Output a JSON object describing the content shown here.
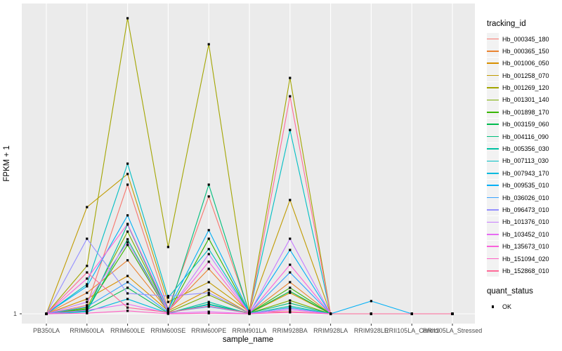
{
  "figure": {
    "background": "#FFFFFF",
    "panel_bg": "#EBEBEB",
    "grid_color": "#FFFFFF",
    "tick_color": "#333333",
    "axis_text_color": "#4D4D4D",
    "point_color": "#000000"
  },
  "chart_data": {
    "type": "line",
    "title": "",
    "xlabel": "sample_name",
    "ylabel": "FPKM + 1",
    "y_axis_ticks": [
      "1"
    ],
    "grid": true,
    "legend_position": "right",
    "point_marker": "black-square (quant_status OK)",
    "note": "y axis shows only the break label '1' at the baseline; series values are relative heights where 100 = tallest peak (Hb_001269_120 at RRIM600LE)",
    "ylim": [
      0,
      100
    ],
    "x": [
      "PB350LA",
      "RRIM600LA",
      "RRIM600LE",
      "RRIM600SE",
      "RRIM600PE",
      "RRIM901LA",
      "RRIM928BA",
      "RRIM928LA",
      "RRIM928LE",
      "RRII105LA_Control",
      "RRII105LA_Stressed"
    ],
    "series": [
      {
        "name": "Hb_000345_180",
        "color": "#F8766D",
        "values": [
          0,
          2.9,
          43.7,
          1.7,
          39.7,
          0.5,
          0.7,
          0,
          0,
          0,
          0
        ]
      },
      {
        "name": "Hb_000365_150",
        "color": "#EA8331",
        "values": [
          0,
          7.1,
          18.1,
          1.0,
          15.2,
          0.2,
          10.7,
          0,
          0,
          0,
          0
        ]
      },
      {
        "name": "Hb_001006_050",
        "color": "#D89000",
        "values": [
          0,
          5.0,
          12.8,
          1.0,
          8.1,
          0.2,
          7.1,
          0,
          0,
          0,
          0
        ]
      },
      {
        "name": "Hb_001258_070",
        "color": "#C09B00",
        "values": [
          0,
          36.1,
          47.3,
          4.0,
          10.7,
          0.7,
          38.5,
          0,
          0,
          0,
          0
        ]
      },
      {
        "name": "Hb_001269_120",
        "color": "#A3A500",
        "values": [
          0,
          16.2,
          100,
          22.6,
          91.2,
          1.0,
          79.8,
          0,
          0,
          0,
          0
        ]
      },
      {
        "name": "Hb_001301_140",
        "color": "#7CAE00",
        "values": [
          0,
          2.1,
          27.8,
          0.5,
          6.4,
          0.2,
          4.5,
          0,
          0,
          0,
          0
        ]
      },
      {
        "name": "Hb_001898_170",
        "color": "#39B600",
        "values": [
          0,
          1.7,
          23.3,
          0.5,
          25.4,
          0.2,
          8.8,
          0,
          0,
          0,
          0
        ]
      },
      {
        "name": "Hb_003159_060",
        "color": "#00BB4E",
        "values": [
          0,
          1.4,
          8.8,
          0.2,
          3.3,
          0.2,
          7.6,
          0,
          0,
          0,
          0
        ]
      },
      {
        "name": "Hb_004116_090",
        "color": "#00BF7D",
        "values": [
          0,
          1.0,
          25.2,
          0.5,
          43.7,
          0.2,
          3.6,
          0,
          0,
          0,
          0
        ]
      },
      {
        "name": "Hb_005356_030",
        "color": "#00C1A3",
        "values": [
          0,
          0.7,
          30.2,
          0.2,
          4.0,
          0,
          2.6,
          0,
          0,
          0,
          0
        ]
      },
      {
        "name": "Hb_007113_030",
        "color": "#00BFC4",
        "values": [
          0,
          10.0,
          50.8,
          5.5,
          21.9,
          0.5,
          62.2,
          0,
          0,
          0,
          0
        ]
      },
      {
        "name": "Hb_007943_170",
        "color": "#00BADE",
        "values": [
          0,
          0.7,
          5.0,
          0.2,
          3.1,
          0,
          2.1,
          0,
          0,
          0,
          0
        ]
      },
      {
        "name": "Hb_009535_010",
        "color": "#00B0F6",
        "values": [
          0,
          9.3,
          33.3,
          1.4,
          28.3,
          0.5,
          21.6,
          0,
          4.3,
          0,
          0
        ]
      },
      {
        "name": "Hb_036026_010",
        "color": "#35A2FF",
        "values": [
          0,
          2.4,
          10.7,
          0.5,
          2.4,
          0.2,
          14.0,
          0,
          0,
          0,
          0
        ]
      },
      {
        "name": "Hb_096473_010",
        "color": "#9590FF",
        "values": [
          0,
          25.4,
          6.9,
          6.0,
          7.1,
          0.2,
          1.9,
          0,
          0,
          0,
          0
        ]
      },
      {
        "name": "Hb_101376_010",
        "color": "#C77CFF",
        "values": [
          0,
          4.0,
          24.2,
          0.7,
          20.2,
          0.2,
          25.4,
          0,
          0,
          0,
          0
        ]
      },
      {
        "name": "Hb_103452_010",
        "color": "#E76BF3",
        "values": [
          0,
          1.2,
          3.3,
          0.2,
          0.7,
          0,
          1.4,
          0,
          0,
          0,
          0
        ]
      },
      {
        "name": "Hb_135673_010",
        "color": "#FA62DB",
        "values": [
          0,
          11.9,
          30.4,
          1.0,
          17.6,
          0.2,
          16.6,
          0,
          0,
          0,
          0
        ]
      },
      {
        "name": "Hb_151094_020",
        "color": "#FF61C3",
        "values": [
          0,
          0.2,
          1.0,
          0,
          0.2,
          0,
          0.5,
          0,
          0,
          0,
          0
        ]
      },
      {
        "name": "Hb_152868_010",
        "color": "#FF6A98",
        "values": [
          0,
          14.0,
          2.1,
          0.5,
          2.6,
          0.2,
          73.6,
          0,
          0,
          0,
          0
        ]
      }
    ]
  },
  "legend": {
    "tracking_title": "tracking_id",
    "quant_title": "quant_status",
    "quant_items": [
      {
        "label": "OK",
        "marker": "black-square"
      }
    ]
  }
}
